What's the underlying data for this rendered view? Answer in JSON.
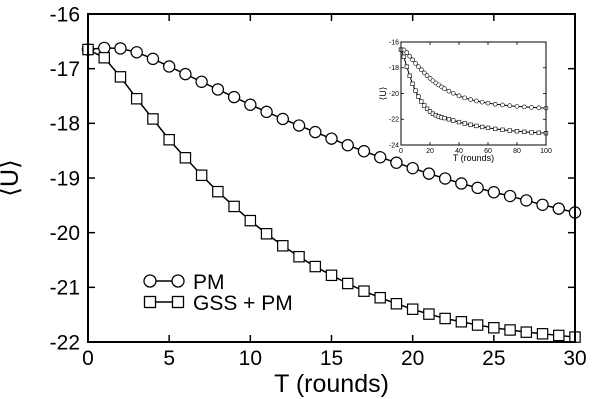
{
  "chart_data": [
    {
      "type": "line",
      "title": "",
      "xlabel": "T (rounds)",
      "ylabel": "⟨U⟩",
      "xlim": [
        0,
        30
      ],
      "ylim": [
        -22,
        -16
      ],
      "xticks": [
        0,
        5,
        10,
        15,
        20,
        25,
        30
      ],
      "yticks": [
        -22,
        -21,
        -20,
        -19,
        -18,
        -17,
        -16
      ],
      "legend_position": "bottom-left",
      "grid": false,
      "series": [
        {
          "name": "PM",
          "marker": "circle",
          "x": [
            0,
            1,
            2,
            3,
            4,
            5,
            6,
            7,
            8,
            9,
            10,
            11,
            12,
            13,
            14,
            15,
            16,
            17,
            18,
            19,
            20,
            21,
            22,
            23,
            24,
            25,
            26,
            27,
            28,
            29,
            30
          ],
          "y": [
            -16.65,
            -16.62,
            -16.63,
            -16.7,
            -16.82,
            -16.96,
            -17.1,
            -17.24,
            -17.38,
            -17.52,
            -17.66,
            -17.79,
            -17.92,
            -18.04,
            -18.16,
            -18.28,
            -18.4,
            -18.51,
            -18.62,
            -18.72,
            -18.82,
            -18.92,
            -19.01,
            -19.1,
            -19.18,
            -19.26,
            -19.33,
            -19.41,
            -19.49,
            -19.56,
            -19.63
          ]
        },
        {
          "name": "GSS + PM",
          "marker": "square",
          "x": [
            0,
            1,
            2,
            3,
            4,
            5,
            6,
            7,
            8,
            9,
            10,
            11,
            12,
            13,
            14,
            15,
            16,
            17,
            18,
            19,
            20,
            21,
            22,
            23,
            24,
            25,
            26,
            27,
            28,
            29,
            30
          ],
          "y": [
            -16.65,
            -16.8,
            -17.15,
            -17.55,
            -17.92,
            -18.3,
            -18.63,
            -18.95,
            -19.25,
            -19.52,
            -19.78,
            -20.02,
            -20.24,
            -20.44,
            -20.62,
            -20.78,
            -20.93,
            -21.07,
            -21.19,
            -21.3,
            -21.4,
            -21.49,
            -21.57,
            -21.63,
            -21.69,
            -21.74,
            -21.78,
            -21.82,
            -21.85,
            -21.88,
            -21.91
          ]
        }
      ]
    },
    {
      "type": "line",
      "title": "",
      "xlabel": "T (rounds)",
      "ylabel": "⟨U⟩",
      "xlim": [
        0,
        100
      ],
      "ylim": [
        -24,
        -16
      ],
      "xticks": [
        0,
        20,
        40,
        60,
        80,
        100
      ],
      "yticks": [
        -24,
        -22,
        -20,
        -18,
        -16
      ],
      "grid": false,
      "series": [
        {
          "marker": "circle",
          "x": [
            0,
            2,
            4,
            6,
            8,
            10,
            12,
            14,
            16,
            18,
            20,
            22,
            24,
            26,
            28,
            30,
            33,
            36,
            40,
            44,
            48,
            52,
            56,
            60,
            65,
            70,
            75,
            80,
            85,
            90,
            95,
            100
          ],
          "y": [
            -16.6,
            -16.62,
            -16.82,
            -17.1,
            -17.38,
            -17.66,
            -17.92,
            -18.16,
            -18.4,
            -18.62,
            -18.82,
            -19.01,
            -19.18,
            -19.33,
            -19.49,
            -19.63,
            -19.82,
            -19.98,
            -20.18,
            -20.34,
            -20.47,
            -20.58,
            -20.67,
            -20.75,
            -20.83,
            -20.89,
            -20.95,
            -21.0,
            -21.04,
            -21.08,
            -21.11,
            -21.14
          ]
        },
        {
          "marker": "square",
          "x": [
            0,
            2,
            4,
            6,
            8,
            10,
            12,
            14,
            16,
            18,
            20,
            22,
            24,
            26,
            28,
            30,
            33,
            36,
            40,
            44,
            48,
            52,
            56,
            60,
            65,
            70,
            75,
            80,
            85,
            90,
            95,
            100
          ],
          "y": [
            -16.6,
            -17.15,
            -17.92,
            -18.63,
            -19.25,
            -19.78,
            -20.24,
            -20.62,
            -20.93,
            -21.19,
            -21.4,
            -21.57,
            -21.69,
            -21.78,
            -21.85,
            -21.91,
            -22.0,
            -22.1,
            -22.22,
            -22.33,
            -22.43,
            -22.52,
            -22.6,
            -22.67,
            -22.75,
            -22.82,
            -22.88,
            -22.93,
            -22.98,
            -23.02,
            -23.05,
            -23.08
          ]
        }
      ]
    }
  ]
}
